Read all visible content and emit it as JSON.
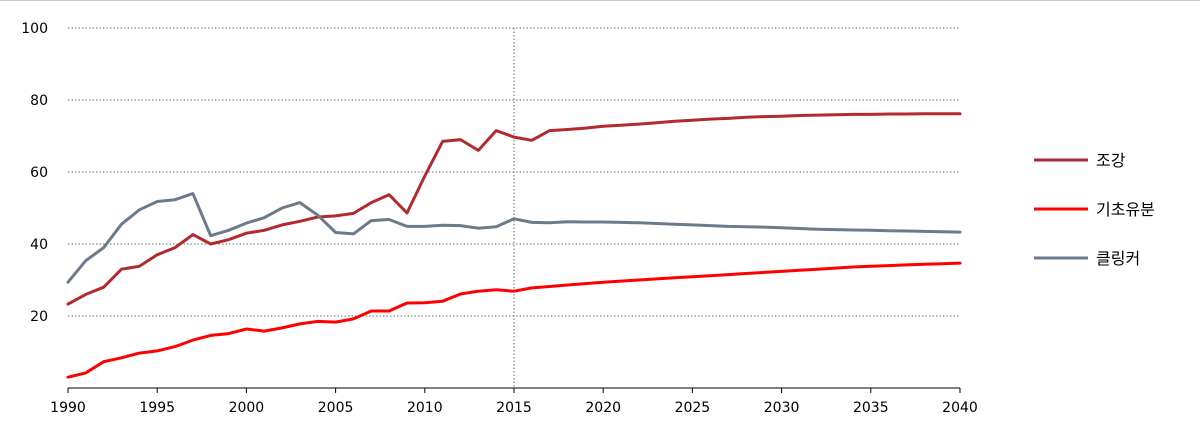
{
  "chart_data": {
    "type": "line",
    "title": "",
    "xlabel": "",
    "ylabel": "",
    "xlim": [
      1990,
      2040
    ],
    "ylim": [
      0,
      100
    ],
    "x_ticks": [
      1990,
      1995,
      2000,
      2005,
      2010,
      2015,
      2020,
      2025,
      2030,
      2035,
      2040
    ],
    "y_ticks": [
      20,
      40,
      60,
      80,
      100
    ],
    "x_tick_labels": [
      "1990",
      "1995",
      "2000",
      "2005",
      "2010",
      "2015",
      "2020",
      "2025",
      "2030",
      "2035",
      "2040"
    ],
    "y_tick_labels": [
      "20",
      "40",
      "60",
      "80",
      "100"
    ],
    "grid": "horizontal-dotted",
    "reference_line_x": 2015,
    "legend_position": "right",
    "x": [
      1990,
      1991,
      1992,
      1993,
      1994,
      1995,
      1996,
      1997,
      1998,
      1999,
      2000,
      2001,
      2002,
      2003,
      2004,
      2005,
      2006,
      2007,
      2008,
      2009,
      2010,
      2011,
      2012,
      2013,
      2014,
      2015,
      2016,
      2017,
      2018,
      2019,
      2020,
      2021,
      2022,
      2023,
      2024,
      2025,
      2026,
      2027,
      2028,
      2029,
      2030,
      2031,
      2032,
      2033,
      2034,
      2035,
      2036,
      2037,
      2038,
      2039,
      2040
    ],
    "series": [
      {
        "name": "조강",
        "color": "#b22a2e",
        "values": [
          23.3,
          26.0,
          28.0,
          33.0,
          33.8,
          37.0,
          39.0,
          42.6,
          40.0,
          41.2,
          43.0,
          43.8,
          45.3,
          46.3,
          47.5,
          47.8,
          48.5,
          51.5,
          53.7,
          48.6,
          58.9,
          68.5,
          69.0,
          66.0,
          71.5,
          69.7,
          68.8,
          71.5,
          71.8,
          72.2,
          72.7,
          73.0,
          73.3,
          73.7,
          74.1,
          74.4,
          74.7,
          74.9,
          75.2,
          75.4,
          75.5,
          75.7,
          75.8,
          75.9,
          76.0,
          76.0,
          76.1,
          76.1,
          76.2,
          76.2,
          76.2
        ]
      },
      {
        "name": "기초유분",
        "color": "#ff0000",
        "values": [
          3.0,
          4.2,
          7.3,
          8.4,
          9.7,
          10.3,
          11.5,
          13.3,
          14.6,
          15.1,
          16.4,
          15.8,
          16.7,
          17.8,
          18.5,
          18.3,
          19.2,
          21.4,
          21.4,
          23.6,
          23.7,
          24.1,
          26.1,
          26.9,
          27.3,
          26.9,
          27.8,
          28.2,
          28.6,
          29.0,
          29.4,
          29.7,
          30.0,
          30.3,
          30.6,
          30.9,
          31.2,
          31.5,
          31.8,
          32.1,
          32.4,
          32.7,
          33.0,
          33.3,
          33.6,
          33.8,
          34.0,
          34.2,
          34.4,
          34.5,
          34.7
        ]
      },
      {
        "name": "클링커",
        "color": "#6b7b8c",
        "values": [
          29.4,
          35.4,
          39.0,
          45.5,
          49.5,
          51.8,
          52.3,
          54.0,
          42.3,
          43.8,
          45.8,
          47.3,
          50.0,
          51.5,
          48.0,
          43.2,
          42.8,
          46.5,
          46.8,
          44.9,
          44.9,
          45.2,
          45.1,
          44.4,
          44.8,
          47.0,
          46.0,
          45.9,
          46.2,
          46.1,
          46.1,
          46.0,
          45.9,
          45.7,
          45.5,
          45.3,
          45.1,
          44.9,
          44.8,
          44.7,
          44.5,
          44.3,
          44.1,
          44.0,
          43.9,
          43.8,
          43.7,
          43.6,
          43.5,
          43.4,
          43.3
        ]
      }
    ]
  }
}
